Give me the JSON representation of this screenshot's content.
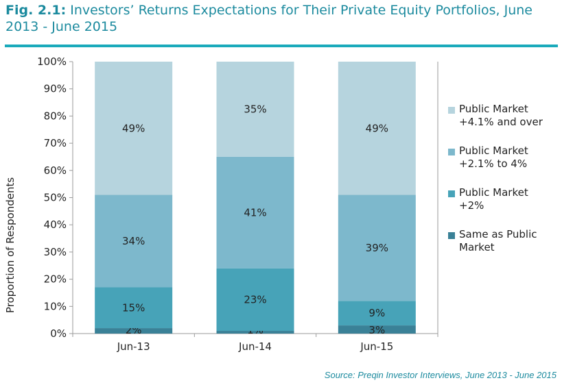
{
  "title": {
    "fig": "Fig. 2.1:",
    "text": " Investors’ Returns Expectations for Their Private Equity Portfolios, June 2013 - June 2015"
  },
  "source": "Source: Preqin Investor Interviews, June 2013 - June 2015",
  "chart_data": {
    "type": "bar",
    "stacked": true,
    "categories": [
      "Jun-13",
      "Jun-14",
      "Jun-15"
    ],
    "ylabel": "Proportion of Respondents",
    "xlabel": "",
    "ylim": [
      0,
      100
    ],
    "yticks": [
      "0%",
      "10%",
      "20%",
      "30%",
      "40%",
      "50%",
      "60%",
      "70%",
      "80%",
      "90%",
      "100%"
    ],
    "grid": false,
    "legend_position": "right",
    "series": [
      {
        "name": "Same as Public Market",
        "values": [
          2,
          1,
          3
        ],
        "labels": [
          "2%",
          "1%",
          "3%"
        ],
        "color": "#3a8197"
      },
      {
        "name": "Public Market +2%",
        "values": [
          15,
          23,
          9
        ],
        "labels": [
          "15%",
          "23%",
          "9%"
        ],
        "color": "#47a3b8"
      },
      {
        "name": "Public Market +2.1% to 4%",
        "values": [
          34,
          41,
          39
        ],
        "labels": [
          "34%",
          "41%",
          "39%"
        ],
        "color": "#7db8cc"
      },
      {
        "name": "Public Market +4.1% and over",
        "values": [
          49,
          35,
          49
        ],
        "labels": [
          "49%",
          "35%",
          "49%"
        ],
        "color": "#b6d4de"
      }
    ],
    "legend_lines": {
      "Public Market +4.1% and over": [
        "Public Market",
        "+4.1% and over"
      ],
      "Public Market +2.1% to 4%": [
        "Public Market",
        "+2.1% to 4%"
      ],
      "Public Market +2%": [
        "Public Market",
        "+2%"
      ],
      "Same as Public Market": [
        "Same as Public",
        "Market"
      ]
    }
  }
}
